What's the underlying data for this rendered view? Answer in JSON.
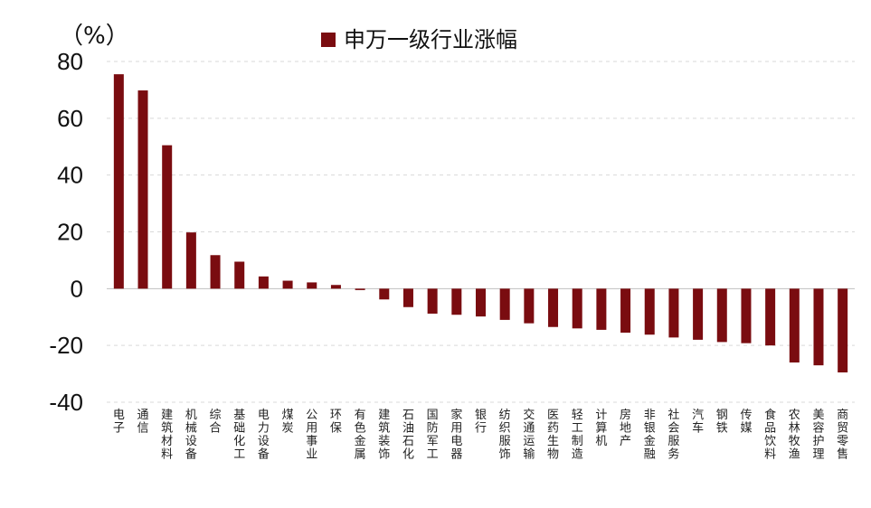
{
  "chart_data": {
    "type": "bar",
    "unit_label": "（%）",
    "legend": "申万一级行业涨幅",
    "series_name": "申万一级行业涨幅",
    "series_color": "#7a0c10",
    "grid": true,
    "legend_position": "top-center",
    "ylim": [
      -40,
      80
    ],
    "yticks": [
      80,
      60,
      40,
      20,
      0,
      -20,
      -40
    ],
    "categories": [
      "电子",
      "通信",
      "建筑材料",
      "机械设备",
      "综合",
      "基础化工",
      "电力设备",
      "煤炭",
      "公用事业",
      "环保",
      "有色金属",
      "建筑装饰",
      "石油石化",
      "国防军工",
      "家用电器",
      "银行",
      "纺织服饰",
      "交通运输",
      "医药生物",
      "轻工制造",
      "计算机",
      "房地产",
      "非银金融",
      "社会服务",
      "汽车",
      "钢铁",
      "传媒",
      "食品饮料",
      "农林牧渔",
      "美容护理",
      "商贸零售"
    ],
    "values": [
      75.5,
      69.8,
      50.5,
      19.8,
      11.8,
      9.5,
      4.3,
      2.8,
      2.2,
      1.3,
      -0.5,
      -3.8,
      -6.5,
      -8.8,
      -9.2,
      -9.8,
      -11.0,
      -12.2,
      -13.5,
      -14.0,
      -14.5,
      -15.5,
      -16.2,
      -17.2,
      -18.0,
      -18.8,
      -19.2,
      -20.0,
      -26.0,
      -27.0,
      -29.5
    ]
  }
}
